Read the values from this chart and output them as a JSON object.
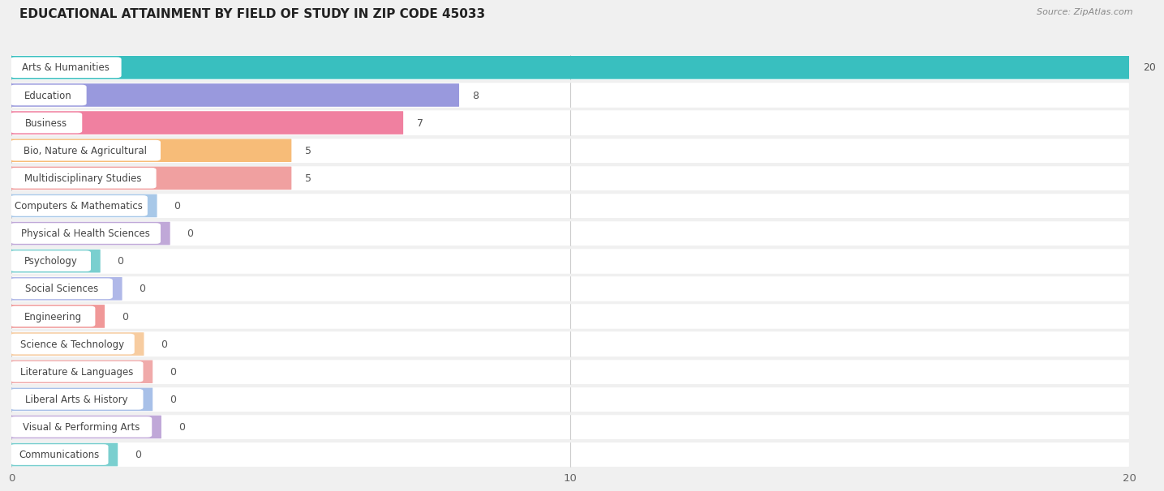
{
  "title": "EDUCATIONAL ATTAINMENT BY FIELD OF STUDY IN ZIP CODE 45033",
  "source": "Source: ZipAtlas.com",
  "categories": [
    "Arts & Humanities",
    "Education",
    "Business",
    "Bio, Nature & Agricultural",
    "Multidisciplinary Studies",
    "Computers & Mathematics",
    "Physical & Health Sciences",
    "Psychology",
    "Social Sciences",
    "Engineering",
    "Science & Technology",
    "Literature & Languages",
    "Liberal Arts & History",
    "Visual & Performing Arts",
    "Communications"
  ],
  "values": [
    20,
    8,
    7,
    5,
    5,
    0,
    0,
    0,
    0,
    0,
    0,
    0,
    0,
    0,
    0
  ],
  "bar_colors": [
    "#39BFBF",
    "#9999DD",
    "#F080A0",
    "#F7BC78",
    "#F0A0A0",
    "#A8C8E8",
    "#C0A8D8",
    "#7ACFCF",
    "#B0B8E8",
    "#F09898",
    "#F7CCA0",
    "#F0AAAA",
    "#A8C0E8",
    "#C0A8D8",
    "#7ACFCF"
  ],
  "xlim": [
    0,
    20
  ],
  "xticks": [
    0,
    10,
    20
  ],
  "background_color": "#f0f0f0",
  "row_bg_color": "#ffffff",
  "grid_color": "#cccccc",
  "title_fontsize": 11,
  "label_fontsize": 8.5,
  "value_fontsize": 9
}
